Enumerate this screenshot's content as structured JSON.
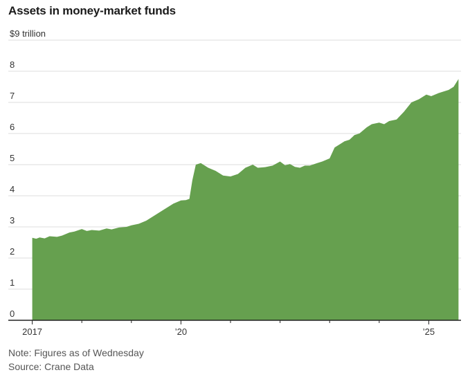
{
  "chart_data": {
    "type": "area",
    "title": "Assets in money-market funds",
    "ylabel": "$9 trillion",
    "xlabel": "",
    "ylim": [
      0,
      9
    ],
    "yticks": [
      0,
      1,
      2,
      3,
      4,
      5,
      6,
      7,
      8
    ],
    "ytick_labels": [
      "0",
      "1",
      "2",
      "3",
      "4",
      "5",
      "6",
      "7",
      "8"
    ],
    "top_tick_label": "$9 trillion",
    "xlim": [
      2016.95,
      2025.65
    ],
    "xticks": [
      2017,
      2020,
      2025
    ],
    "xtick_labels": [
      "2017",
      "’20",
      "’25"
    ],
    "grid": true,
    "color": "#66a04f",
    "x": [
      2017.0,
      2017.08,
      2017.15,
      2017.25,
      2017.35,
      2017.5,
      2017.6,
      2017.75,
      2017.85,
      2018.0,
      2018.1,
      2018.2,
      2018.35,
      2018.5,
      2018.6,
      2018.75,
      2018.9,
      2019.0,
      2019.15,
      2019.3,
      2019.5,
      2019.65,
      2019.75,
      2019.85,
      2020.0,
      2020.1,
      2020.17,
      2020.23,
      2020.3,
      2020.4,
      2020.55,
      2020.7,
      2020.85,
      2021.0,
      2021.15,
      2021.3,
      2021.45,
      2021.55,
      2021.7,
      2021.85,
      2022.0,
      2022.1,
      2022.2,
      2022.3,
      2022.4,
      2022.5,
      2022.6,
      2022.75,
      2022.85,
      2023.0,
      2023.1,
      2023.2,
      2023.3,
      2023.4,
      2023.5,
      2023.6,
      2023.75,
      2023.85,
      2024.0,
      2024.1,
      2024.2,
      2024.35,
      2024.5,
      2024.65,
      2024.8,
      2024.95,
      2025.05,
      2025.2,
      2025.3,
      2025.4,
      2025.5,
      2025.6
    ],
    "values": [
      2.65,
      2.62,
      2.66,
      2.63,
      2.7,
      2.68,
      2.72,
      2.82,
      2.85,
      2.93,
      2.87,
      2.9,
      2.88,
      2.95,
      2.92,
      2.98,
      3.0,
      3.05,
      3.1,
      3.2,
      3.4,
      3.55,
      3.65,
      3.75,
      3.85,
      3.86,
      3.9,
      4.5,
      5.0,
      5.05,
      4.9,
      4.8,
      4.65,
      4.62,
      4.7,
      4.9,
      5.0,
      4.9,
      4.92,
      4.97,
      5.1,
      4.98,
      5.02,
      4.93,
      4.9,
      4.97,
      4.97,
      5.05,
      5.1,
      5.2,
      5.55,
      5.65,
      5.75,
      5.8,
      5.95,
      6.0,
      6.2,
      6.3,
      6.35,
      6.3,
      6.4,
      6.45,
      6.7,
      7.0,
      7.1,
      7.25,
      7.2,
      7.3,
      7.35,
      7.4,
      7.5,
      7.75
    ]
  },
  "notes": {
    "note": "Note: Figures as of Wednesday",
    "source": "Source: Crane Data"
  }
}
